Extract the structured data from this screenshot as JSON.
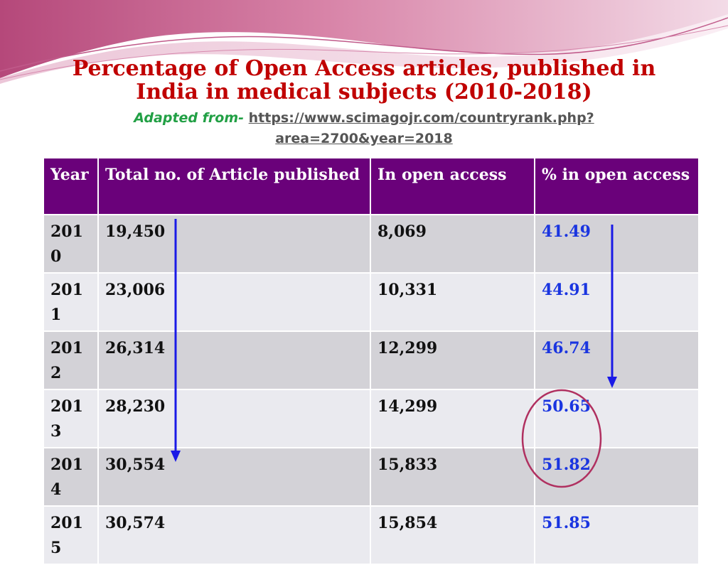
{
  "slide": {
    "title_line1": "Percentage of Open Access articles, published in",
    "title_line2": "India in medical subjects (2010-2018)",
    "adapted_label": "Adapted from- ",
    "source_url_line1": "https://www.scimagojr.com/countryrank.php?",
    "source_url_line2": "area=2700&year=2018"
  },
  "table": {
    "headers": [
      "Year",
      "Total no. of Article published",
      "In open access",
      "% in open access"
    ],
    "rows": [
      {
        "year": "2010",
        "total": "19,450",
        "open": "8,069",
        "pct": "41.49"
      },
      {
        "year": "2011",
        "total": "23,006",
        "open": "10,331",
        "pct": "44.91"
      },
      {
        "year": "2012",
        "total": "26,314",
        "open": "12,299",
        "pct": "46.74"
      },
      {
        "year": "2013",
        "total": "28,230",
        "open": "14,299",
        "pct": "50.65"
      },
      {
        "year": "2014",
        "total": "30,554",
        "open": "15,833",
        "pct": "51.82"
      },
      {
        "year": "2015",
        "total": "30,574",
        "open": "15,854",
        "pct": "51.85"
      }
    ]
  },
  "colors": {
    "title": "#c00000",
    "header_bg": "#6a017a",
    "row_odd": "#d3d2d7",
    "row_even": "#eaeaef",
    "percent_text": "#1a35e0",
    "arrow": "#1a1ae6",
    "circle": "#b03060",
    "adapted": "#22a045"
  }
}
